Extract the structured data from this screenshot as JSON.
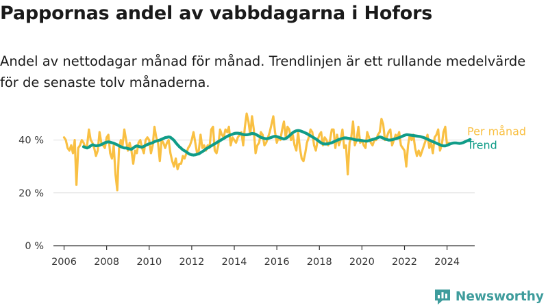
{
  "title": "Pappornas andel av vabbdagarna i Hofors",
  "subtitle": "Andel av nettodagar månad för månad. Trendlinjen är ett rullande medelvärde för de senaste tolv månaderna.",
  "brand": {
    "name": "Newsworthy",
    "color": "#3e9c9c"
  },
  "colors": {
    "monthly": "#f9c043",
    "trend": "#109c88",
    "grid": "#dddddd",
    "axis": "#333333"
  },
  "chart_data": {
    "type": "line",
    "x_unit": "year",
    "xlim": [
      2005.5,
      2025.3
    ],
    "ylim": [
      0,
      50
    ],
    "x_ticks": [
      2006,
      2008,
      2010,
      2012,
      2014,
      2016,
      2018,
      2020,
      2022,
      2024
    ],
    "x_tick_labels": [
      "2006",
      "2008",
      "2010",
      "2012",
      "2014",
      "2016",
      "2018",
      "2020",
      "2022",
      "2024"
    ],
    "y_ticks": [
      0,
      20,
      40
    ],
    "y_tick_labels": [
      "0 %",
      "20 %",
      "40 %"
    ],
    "grid": "horizontal",
    "legend": "direct labels at right end of lines",
    "series": [
      {
        "name": "Per månad",
        "color": "#f9c043",
        "x_start": 2006.0,
        "x_step": 0.0833333,
        "values": [
          41,
          40,
          37,
          36,
          38,
          35,
          40,
          23,
          37,
          38,
          40,
          39,
          37,
          38,
          44,
          40,
          39,
          37,
          34,
          36,
          43,
          39,
          38,
          37,
          41,
          42,
          35,
          33,
          38,
          27,
          21,
          37,
          40,
          38,
          44,
          40,
          36,
          39,
          36,
          31,
          36,
          35,
          39,
          40,
          37,
          35,
          40,
          41,
          40,
          35,
          38,
          45,
          41,
          39,
          32,
          40,
          39,
          37,
          39,
          40,
          35,
          32,
          30,
          33,
          29,
          31,
          31,
          34,
          33,
          35,
          37,
          38,
          40,
          43,
          39,
          35,
          36,
          42,
          37,
          38,
          36,
          38,
          37,
          44,
          45,
          36,
          35,
          38,
          44,
          42,
          41,
          44,
          43,
          45,
          38,
          41,
          40,
          39,
          41,
          42,
          43,
          38,
          45,
          50,
          47,
          42,
          49,
          44,
          35,
          38,
          39,
          43,
          42,
          38,
          39,
          41,
          43,
          46,
          49,
          43,
          39,
          41,
          40,
          44,
          47,
          41,
          45,
          44,
          40,
          42,
          38,
          36,
          43,
          37,
          33,
          32,
          35,
          39,
          41,
          44,
          43,
          38,
          36,
          40,
          42,
          43,
          38,
          41,
          40,
          38,
          40,
          44,
          44,
          37,
          42,
          38,
          40,
          44,
          37,
          38,
          27,
          39,
          41,
          47,
          38,
          40,
          45,
          39,
          40,
          38,
          37,
          43,
          41,
          39,
          38,
          40,
          40,
          42,
          43,
          48,
          46,
          40,
          41,
          43,
          44,
          38,
          40,
          42,
          41,
          43,
          38,
          37,
          36,
          30,
          38,
          42,
          40,
          42,
          37,
          34,
          36,
          34,
          36,
          38,
          40,
          42,
          37,
          39,
          35,
          41,
          42,
          44,
          36,
          38,
          43,
          45,
          38,
          39
        ],
        "label": "Per månad"
      },
      {
        "name": "Trend",
        "color": "#109c88",
        "x_start": 2006.917,
        "x_step": 0.0833333,
        "values": [
          37.5,
          37.2,
          37.0,
          37.3,
          37.8,
          38.2,
          38.0,
          37.8,
          37.9,
          38.0,
          38.3,
          38.6,
          39.0,
          39.2,
          39.3,
          39.2,
          39.0,
          38.8,
          38.5,
          38.2,
          37.8,
          37.5,
          37.2,
          37.0,
          37.0,
          36.8,
          36.6,
          36.5,
          37.0,
          37.5,
          37.8,
          37.6,
          37.4,
          37.3,
          37.6,
          38.0,
          38.3,
          38.6,
          38.8,
          39.0,
          39.4,
          39.6,
          39.8,
          40.0,
          40.3,
          40.6,
          40.9,
          41.0,
          41.2,
          41.0,
          40.5,
          39.9,
          39.0,
          38.2,
          37.5,
          36.9,
          36.3,
          35.9,
          35.5,
          35.0,
          34.6,
          34.4,
          34.3,
          34.4,
          34.6,
          34.8,
          35.2,
          35.6,
          36.1,
          36.6,
          37.0,
          37.4,
          37.8,
          38.2,
          38.6,
          39.0,
          39.4,
          39.8,
          40.2,
          40.6,
          41.0,
          41.4,
          41.7,
          42.0,
          42.2,
          42.5,
          42.6,
          42.6,
          42.5,
          42.3,
          42.1,
          42.0,
          42.0,
          42.1,
          42.3,
          42.5,
          42.4,
          42.2,
          41.8,
          41.4,
          41.0,
          40.8,
          40.6,
          40.5,
          40.6,
          40.8,
          41.0,
          41.3,
          41.4,
          41.3,
          41.1,
          40.8,
          40.6,
          40.4,
          40.6,
          41.0,
          41.6,
          42.2,
          42.8,
          43.2,
          43.5,
          43.6,
          43.5,
          43.3,
          43.0,
          42.7,
          42.4,
          42.0,
          41.6,
          41.2,
          40.8,
          40.4,
          39.9,
          39.4,
          38.9,
          38.6,
          38.5,
          38.5,
          38.6,
          38.8,
          39.0,
          39.3,
          39.6,
          39.9,
          40.2,
          40.4,
          40.6,
          40.8,
          40.8,
          40.7,
          40.6,
          40.5,
          40.3,
          40.1,
          40.0,
          40.0,
          39.9,
          39.8,
          39.7,
          39.6,
          39.6,
          39.8,
          40.0,
          40.2,
          40.4,
          40.6,
          40.9,
          41.2,
          41.0,
          40.7,
          40.4,
          40.2,
          40.0,
          40.0,
          40.1,
          40.3,
          40.5,
          40.7,
          40.9,
          41.2,
          41.5,
          41.8,
          42.0,
          42.0,
          41.9,
          41.8,
          41.7,
          41.6,
          41.5,
          41.4,
          41.3,
          41.1,
          40.9,
          40.6,
          40.3,
          40.0,
          39.7,
          39.4,
          39.1,
          38.8,
          38.5,
          38.2,
          37.9,
          37.8,
          37.8,
          38.0,
          38.3,
          38.6,
          38.8,
          38.9,
          38.9,
          38.8,
          38.7,
          38.8,
          39.0,
          39.3,
          39.6,
          39.9,
          40.2
        ],
        "label": "Trend"
      }
    ]
  }
}
